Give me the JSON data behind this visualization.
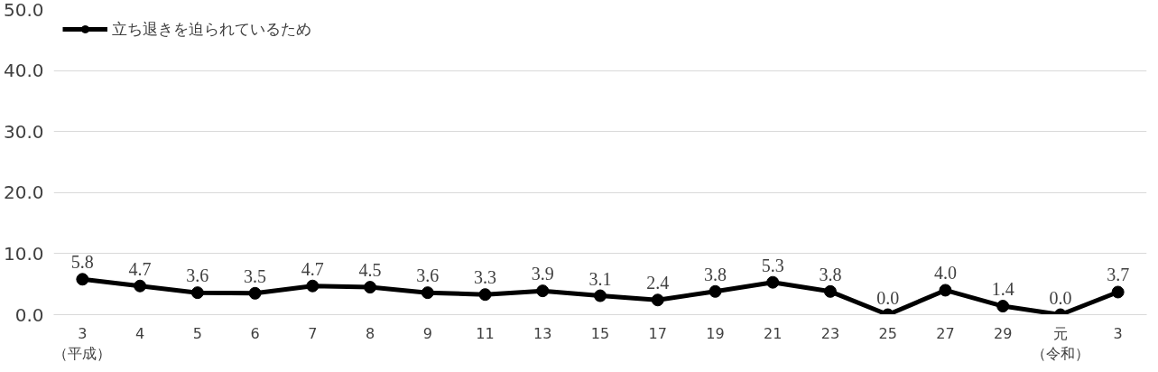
{
  "chart_data": {
    "type": "line",
    "categories": [
      "3（平成）",
      "4",
      "5",
      "6",
      "7",
      "8",
      "9",
      "11",
      "13",
      "15",
      "17",
      "19",
      "21",
      "23",
      "25",
      "27",
      "29",
      "元（令和）",
      "3"
    ],
    "series": [
      {
        "name": "立ち退きを迫られているため",
        "color": "#000000",
        "values": [
          5.8,
          4.7,
          3.6,
          3.5,
          4.7,
          4.5,
          3.6,
          3.3,
          3.9,
          3.1,
          2.4,
          3.8,
          5.3,
          3.8,
          0.0,
          4.0,
          1.4,
          0.0,
          3.7
        ],
        "value_labels": [
          "5.8",
          "4.7",
          "3.6",
          "3.5",
          "4.7",
          "4.5",
          "3.6",
          "3.3",
          "3.9",
          "3.1",
          "2.4",
          "3.8",
          "5.3",
          "3.8",
          "0.0",
          "4.0",
          "1.4",
          "0.0",
          "3.7"
        ]
      }
    ],
    "ylim": [
      0,
      50
    ],
    "yticks": [
      {
        "value": 0,
        "label": "0.0"
      },
      {
        "value": 10,
        "label": "10.0"
      },
      {
        "value": 20,
        "label": "20.0"
      },
      {
        "value": 30,
        "label": "30.0"
      },
      {
        "value": 40,
        "label": "40.0"
      },
      {
        "value": 50,
        "label": "50.0"
      }
    ],
    "grid": "y",
    "legend": "top left",
    "marker": "circle",
    "line_style": "solid"
  }
}
